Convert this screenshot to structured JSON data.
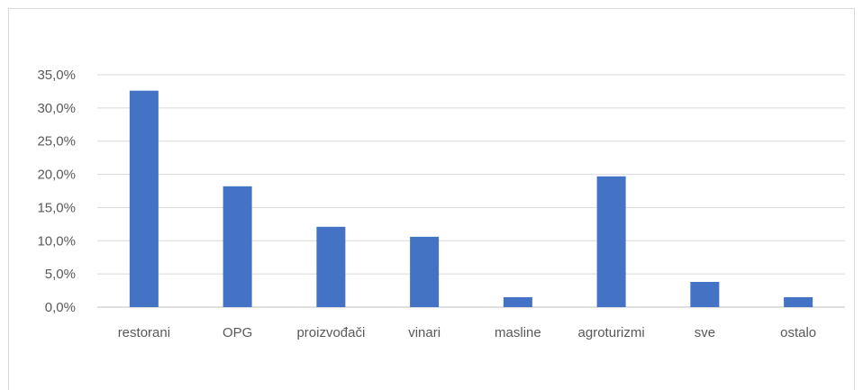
{
  "chart_data": {
    "type": "bar",
    "title": "",
    "xlabel": "",
    "ylabel": "",
    "categories": [
      "restorani",
      "OPG",
      "proizvođači",
      "vinari",
      "masline",
      "agroturizmi",
      "sve",
      "ostalo"
    ],
    "values": [
      32.6,
      18.2,
      12.1,
      10.6,
      1.5,
      19.7,
      3.8,
      1.5
    ],
    "ylim": [
      0,
      35
    ],
    "yticks": [
      "0,0%",
      "5,0%",
      "10,0%",
      "15,0%",
      "20,0%",
      "25,0%",
      "30,0%",
      "35,0%"
    ],
    "grid": true,
    "legend": "none",
    "bar_color": "#4472c4",
    "grid_color": "#d9d9d9",
    "axis_color": "#bfbfbf"
  }
}
